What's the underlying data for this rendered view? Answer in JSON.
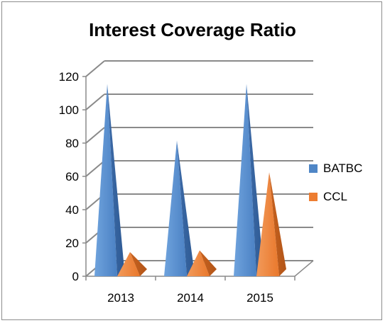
{
  "chart_data": {
    "type": "bar",
    "shape": "3d-cone",
    "title": "Interest Coverage Ratio",
    "categories": [
      "2013",
      "2014",
      "2015"
    ],
    "series": [
      {
        "name": "BATBC",
        "values": [
          107,
          73,
          107
        ],
        "color": "#4f86c6"
      },
      {
        "name": "CCL",
        "values": [
          6,
          7,
          54
        ],
        "color": "#ed7d31"
      }
    ],
    "ylim": [
      0,
      120
    ],
    "yticks": [
      "0",
      "20",
      "40",
      "60",
      "80",
      "100",
      "120"
    ],
    "grid": true,
    "legend": "right"
  }
}
